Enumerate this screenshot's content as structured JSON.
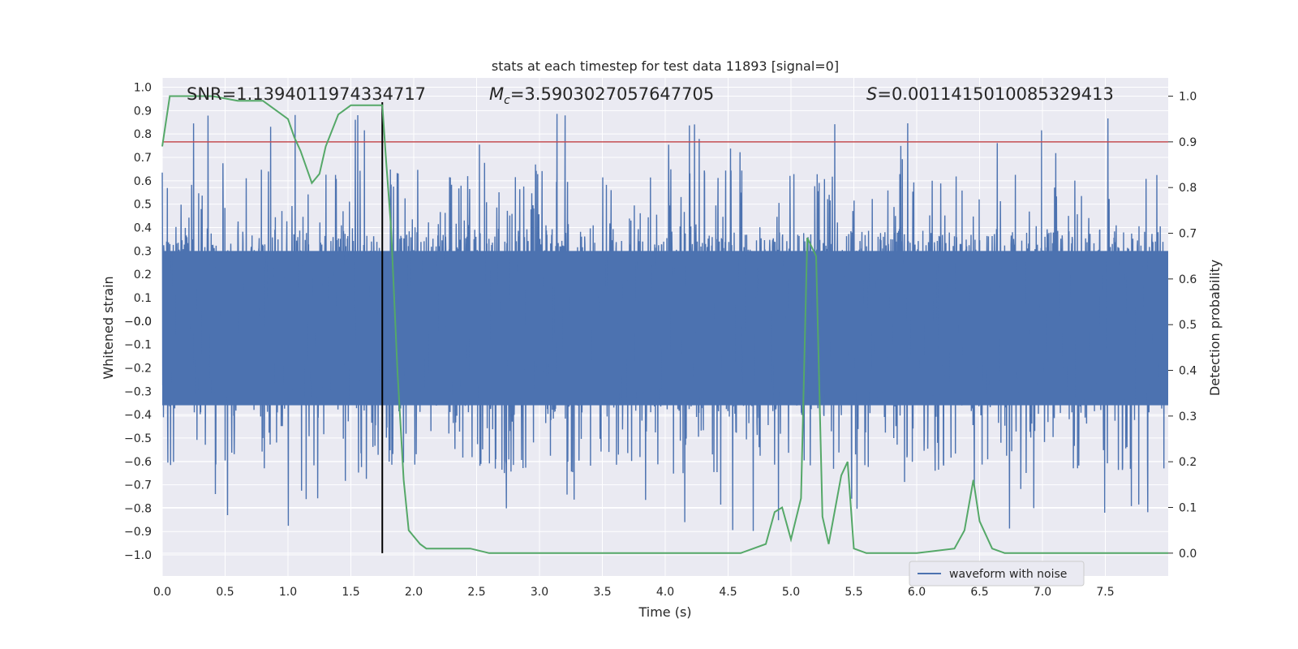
{
  "chart_data": {
    "type": "line",
    "title": "stats at each timestep for test data 11893 [signal=0]",
    "xlabel": "Time (s)",
    "ylabel_left": "Whitened strain",
    "ylabel_right": "Detection probability",
    "xlim": [
      0.0,
      8.0
    ],
    "ylim_left": [
      -1.09,
      1.04
    ],
    "ylim_right": [
      -0.05,
      1.04
    ],
    "x_ticks": [
      "0.0",
      "0.5",
      "1.0",
      "1.5",
      "2.0",
      "2.5",
      "3.0",
      "3.5",
      "4.0",
      "4.5",
      "5.0",
      "5.5",
      "6.0",
      "6.5",
      "7.0",
      "7.5"
    ],
    "y_ticks_left": [
      "1.0",
      "0.9",
      "0.8",
      "0.7",
      "0.6",
      "0.5",
      "0.4",
      "0.3",
      "0.2",
      "0.1",
      "0.0",
      "−0.0",
      "−0.1",
      "−0.2",
      "−0.3",
      "−0.4",
      "−0.5",
      "−0.6",
      "−0.7",
      "−0.8",
      "−0.9",
      "−1.0"
    ],
    "y_tick_values_left": [
      1.0,
      0.9,
      0.8,
      0.7,
      0.6,
      0.5,
      0.4,
      0.3,
      0.2,
      0.1,
      0.0,
      -0.0,
      -0.1,
      -0.2,
      -0.3,
      -0.4,
      -0.5,
      -0.6,
      -0.7,
      -0.8,
      -0.9,
      -1.0
    ],
    "y_ticks_right": [
      "1.0",
      "0.9",
      "0.8",
      "0.7",
      "0.6",
      "0.5",
      "0.4",
      "0.3",
      "0.2",
      "0.1",
      "0.0"
    ],
    "y_tick_values_right": [
      1.0,
      0.9,
      0.8,
      0.7,
      0.6,
      0.5,
      0.4,
      0.3,
      0.2,
      0.1,
      0.0
    ],
    "grid": true,
    "annotations": {
      "snr": "SNR=1.1394011974334717",
      "mc_symbol": "M",
      "mc_subscript": "c",
      "mc_value": "=3.5903027057647705",
      "s_symbol": "S",
      "s_value": "=0.0011415010085329413"
    },
    "vertical_line_x": 1.75,
    "threshold_right": 0.9,
    "legend": {
      "label": "waveform with noise",
      "placement": "lower right"
    },
    "series": [
      {
        "name": "waveform with noise",
        "axis": "left",
        "color": "#4c72b0",
        "note": "dense noise trace ±0.35 core, peaks to ±0.9 (rendered procedurally)"
      },
      {
        "axis": "right",
        "color": "#55a868",
        "x": [
          0.0,
          0.06,
          0.2,
          0.4,
          0.6,
          0.8,
          0.9,
          1.0,
          1.05,
          1.1,
          1.19,
          1.25,
          1.3,
          1.4,
          1.5,
          1.65,
          1.75,
          1.78,
          1.82,
          1.87,
          1.92,
          1.96,
          2.05,
          2.1,
          2.15,
          2.3,
          2.45,
          2.6,
          2.85,
          3.0,
          3.3,
          3.5,
          3.7,
          4.0,
          4.3,
          4.6,
          4.8,
          4.87,
          4.93,
          5.0,
          5.08,
          5.13,
          5.2,
          5.25,
          5.3,
          5.4,
          5.45,
          5.5,
          5.6,
          5.75,
          6.0,
          6.3,
          6.38,
          6.45,
          6.5,
          6.6,
          6.7,
          6.85,
          7.0,
          7.3,
          7.5,
          7.7,
          8.0
        ],
        "y": [
          0.89,
          1.0,
          1.0,
          1.0,
          0.99,
          0.99,
          0.97,
          0.95,
          0.91,
          0.88,
          0.81,
          0.83,
          0.89,
          0.96,
          0.98,
          0.98,
          0.98,
          0.86,
          0.71,
          0.4,
          0.16,
          0.05,
          0.02,
          0.01,
          0.01,
          0.01,
          0.01,
          0.0,
          0.0,
          0.0,
          0.0,
          0.0,
          0.0,
          0.0,
          0.0,
          0.0,
          0.02,
          0.09,
          0.1,
          0.03,
          0.12,
          0.69,
          0.65,
          0.08,
          0.02,
          0.17,
          0.2,
          0.01,
          0.0,
          0.0,
          0.0,
          0.01,
          0.05,
          0.16,
          0.07,
          0.01,
          0.0,
          0.0,
          0.0,
          0.0,
          0.0,
          0.0,
          0.0
        ]
      }
    ]
  }
}
